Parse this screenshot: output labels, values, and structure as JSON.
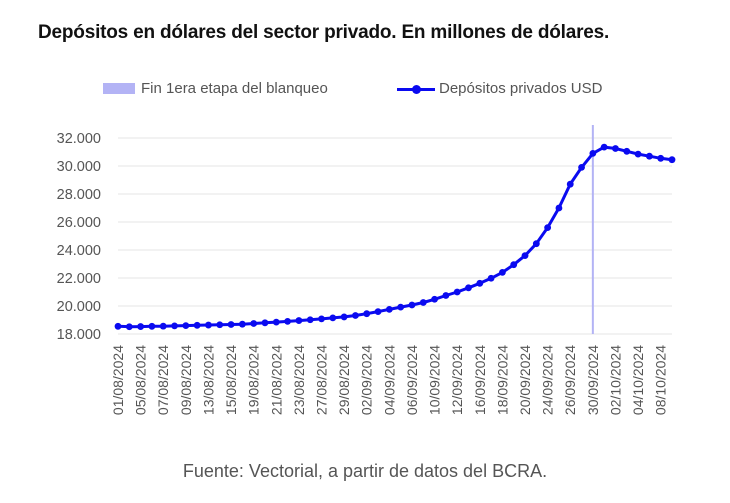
{
  "chart_data": {
    "type": "line",
    "title": "Depósitos en dólares del sector privado. En millones de dólares.",
    "source": "Fuente: Vectorial, a partir de datos del BCRA.",
    "legend": {
      "placement": "top-center",
      "marker_label": "Fin 1era etapa del blanqueo",
      "series_label": "Depósitos privados USD"
    },
    "ylim": [
      18000,
      32000
    ],
    "yticks": [
      "18.000",
      "20.000",
      "22.000",
      "24.000",
      "26.000",
      "28.000",
      "30.000",
      "32.000"
    ],
    "ytick_values": [
      18000,
      20000,
      22000,
      24000,
      26000,
      28000,
      30000,
      32000
    ],
    "grid": "horizontal",
    "x_tick_labels": [
      "01/08/2024",
      "05/08/2024",
      "07/08/2024",
      "09/08/2024",
      "13/08/2024",
      "15/08/2024",
      "19/08/2024",
      "21/08/2024",
      "23/08/2024",
      "27/08/2024",
      "29/08/2024",
      "02/09/2024",
      "04/09/2024",
      "06/09/2024",
      "10/09/2024",
      "12/09/2024",
      "16/09/2024",
      "18/09/2024",
      "20/09/2024",
      "24/09/2024",
      "26/09/2024",
      "30/09/2024",
      "02/10/2024",
      "04/10/2024",
      "08/10/2024"
    ],
    "marker_date": "30/09/2024",
    "colors": {
      "series": "#0a0af0",
      "marker": "#b3b3f5",
      "grid": "#e4e4e4",
      "axis_text": "#555555"
    },
    "series": [
      {
        "name": "Depósitos privados USD",
        "x": [
          "01/08/2024",
          "02/08/2024",
          "05/08/2024",
          "06/08/2024",
          "07/08/2024",
          "08/08/2024",
          "09/08/2024",
          "12/08/2024",
          "13/08/2024",
          "14/08/2024",
          "15/08/2024",
          "16/08/2024",
          "19/08/2024",
          "20/08/2024",
          "21/08/2024",
          "22/08/2024",
          "23/08/2024",
          "26/08/2024",
          "27/08/2024",
          "28/08/2024",
          "29/08/2024",
          "30/08/2024",
          "02/09/2024",
          "03/09/2024",
          "04/09/2024",
          "05/09/2024",
          "06/09/2024",
          "09/09/2024",
          "10/09/2024",
          "11/09/2024",
          "12/09/2024",
          "13/09/2024",
          "16/09/2024",
          "17/09/2024",
          "18/09/2024",
          "19/09/2024",
          "20/09/2024",
          "23/09/2024",
          "24/09/2024",
          "25/09/2024",
          "26/09/2024",
          "27/09/2024",
          "30/09/2024",
          "01/10/2024",
          "02/10/2024",
          "03/10/2024",
          "04/10/2024",
          "07/10/2024",
          "08/10/2024",
          "09/10/2024"
        ],
        "values": [
          18550,
          18520,
          18530,
          18550,
          18560,
          18580,
          18600,
          18620,
          18640,
          18660,
          18680,
          18700,
          18750,
          18800,
          18850,
          18900,
          18960,
          19020,
          19080,
          19150,
          19220,
          19320,
          19450,
          19600,
          19760,
          19920,
          20070,
          20250,
          20480,
          20750,
          21000,
          21300,
          21620,
          21980,
          22400,
          22950,
          23600,
          24450,
          25600,
          27000,
          28700,
          29900,
          30900,
          31350,
          31250,
          31050,
          30850,
          30700,
          30550,
          30450
        ]
      }
    ]
  }
}
